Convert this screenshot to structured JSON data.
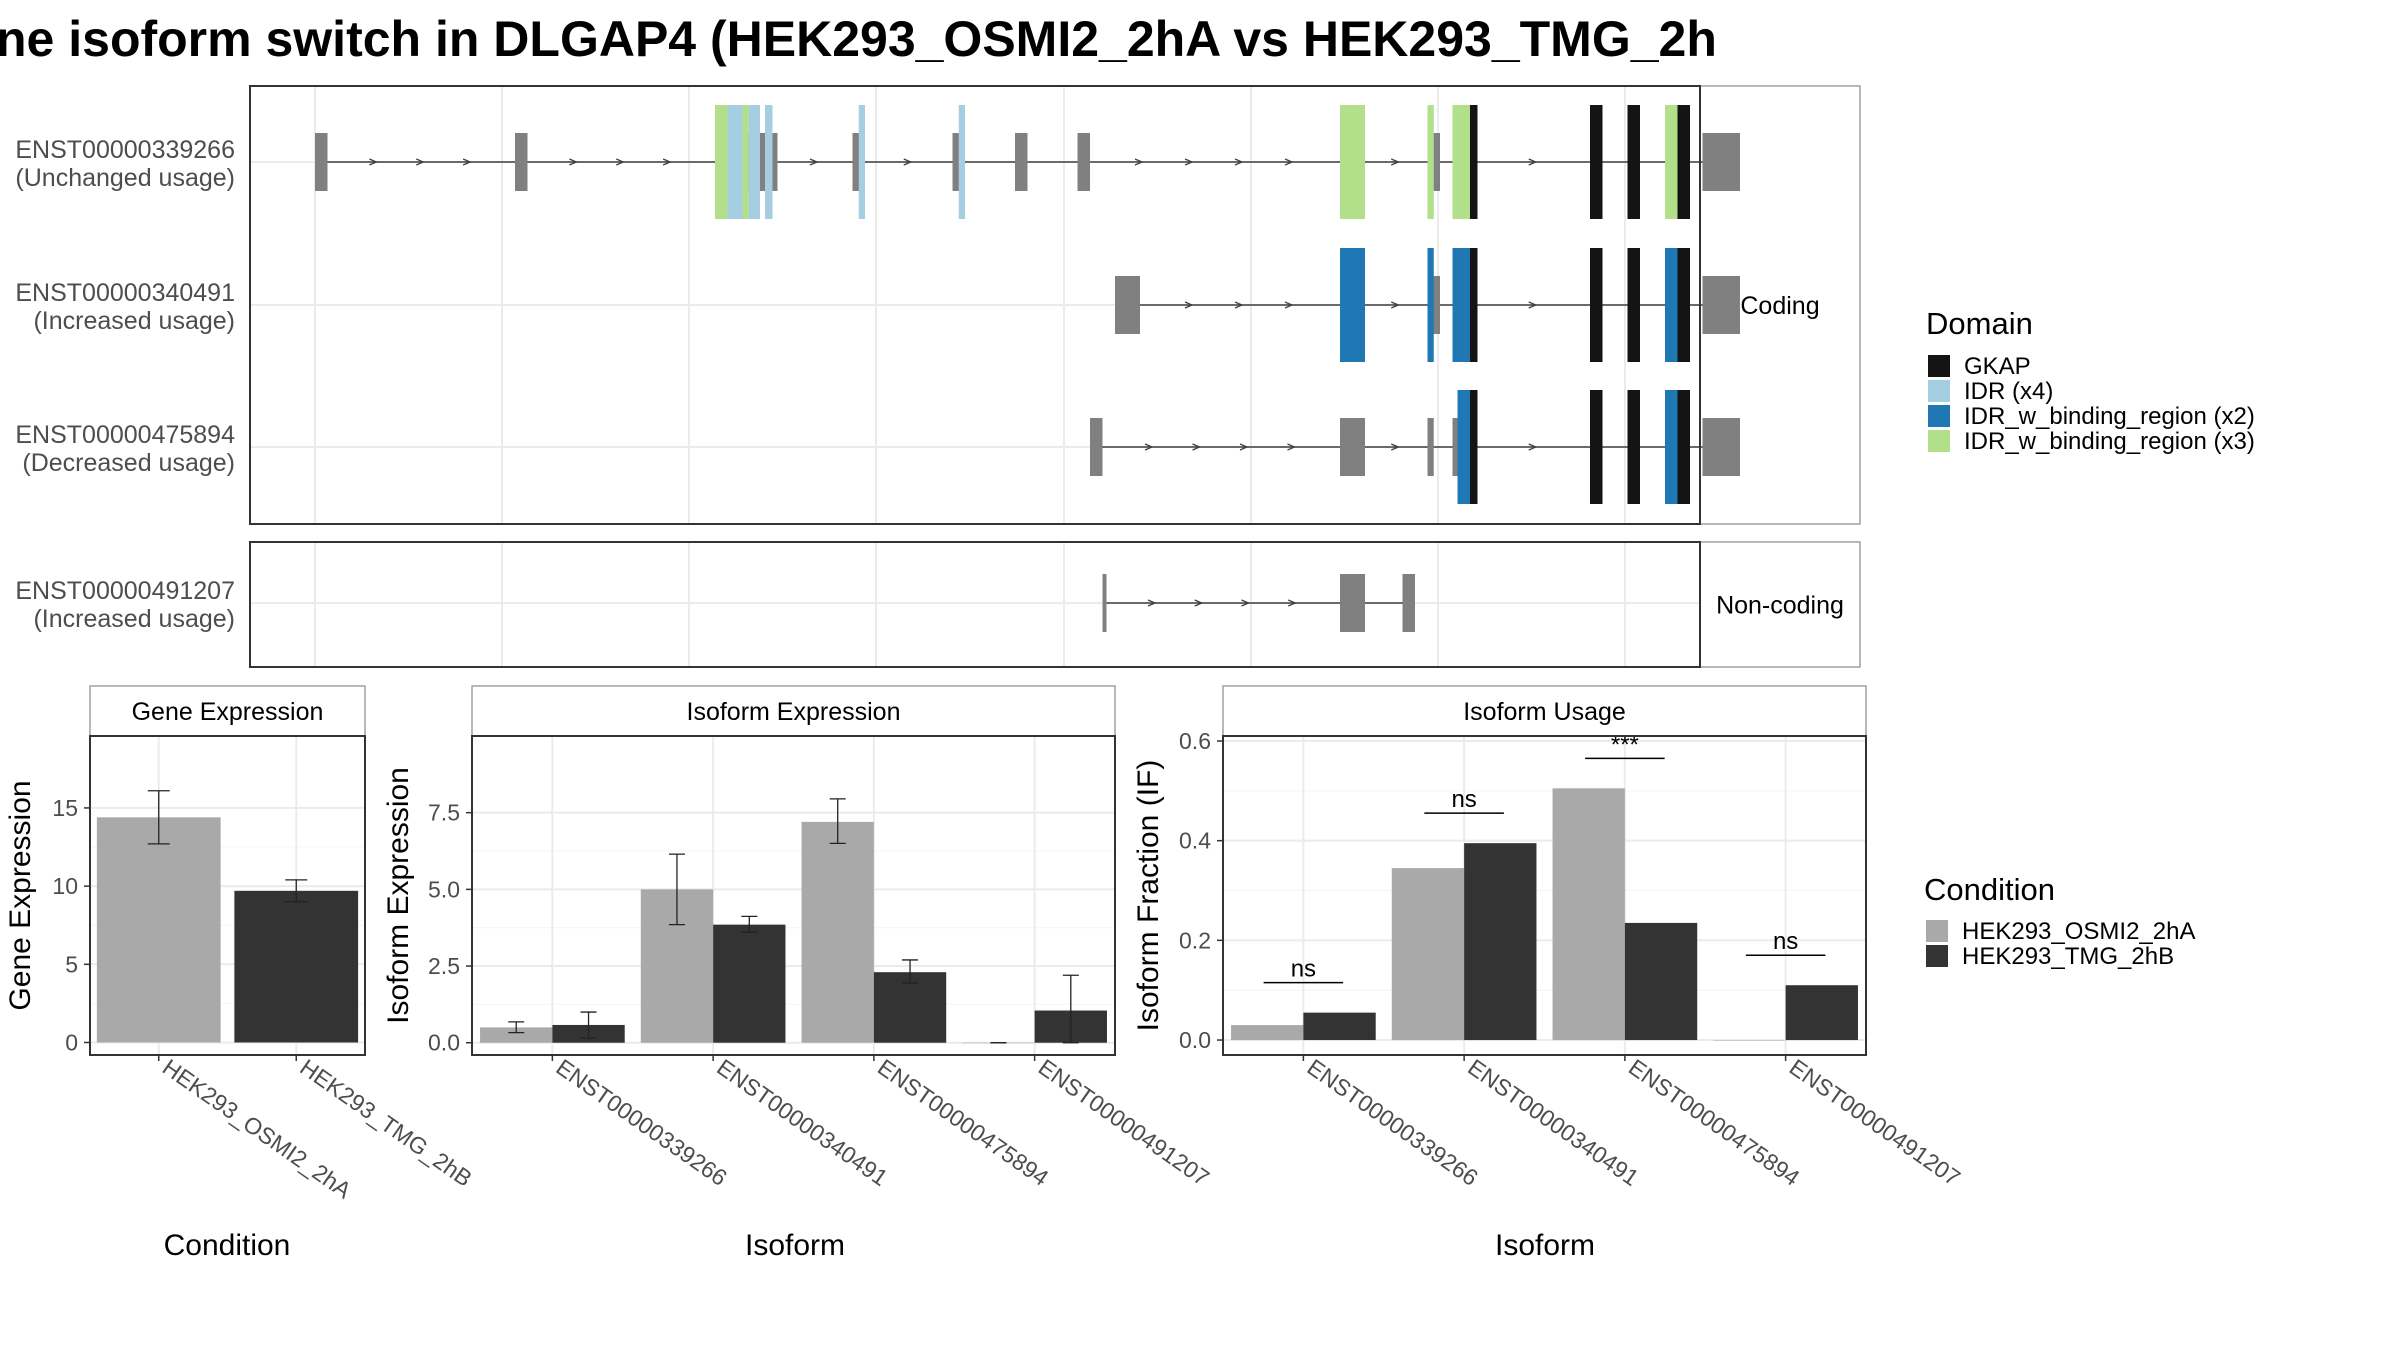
{
  "title": "ne isoform switch in DLGAP4 (HEK293_OSMI2_2hA vs HEK293_TMG_2h",
  "colors": {
    "GKAP": "#141414",
    "IDR (x4)": "#a6cee3",
    "IDR_w_binding_region (x2)": "#1f78b4",
    "IDR_w_binding_region (x3)": "#b2df8a",
    "exon": "#808080",
    "condA": "#a9a9a9",
    "condB": "#333333"
  },
  "domain_legend": {
    "title": "Domain",
    "items": [
      "GKAP",
      "IDR (x4)",
      "IDR_w_binding_region (x2)",
      "IDR_w_binding_region (x3)"
    ]
  },
  "condition_legend": {
    "title": "Condition",
    "items": [
      "HEK293_OSMI2_2hA",
      "HEK293_TMG_2hB"
    ]
  },
  "structure": {
    "facets": [
      {
        "label": "Coding",
        "rows": [
          {
            "id": "ENST00000339266",
            "usage": "(Unchanged usage)"
          },
          {
            "id": "ENST00000340491",
            "usage": "(Increased usage)"
          },
          {
            "id": "ENST00000475894",
            "usage": "(Decreased usage)"
          }
        ]
      },
      {
        "label": "Non-coding",
        "rows": [
          {
            "id": "ENST00000491207",
            "usage": "(Increased usage)"
          }
        ]
      }
    ],
    "transcripts": [
      {
        "id": "ENST00000339266",
        "exons": [
          [
            0,
            1
          ],
          [
            16,
            17
          ],
          [
            32,
            37
          ],
          [
            43,
            44
          ],
          [
            51,
            52
          ],
          [
            56,
            57
          ],
          [
            61,
            62
          ],
          [
            82,
            84
          ],
          [
            89,
            90
          ],
          [
            91,
            93
          ],
          [
            102,
            103
          ],
          [
            105,
            106
          ],
          [
            108,
            109
          ],
          [
            111,
            114
          ]
        ],
        "domains": [
          [
            32,
            33,
            "IDR_w_binding_region (x3)"
          ],
          [
            33,
            34.2,
            "IDR (x4)"
          ],
          [
            34.2,
            34.7,
            "IDR_w_binding_region (x3)"
          ],
          [
            34.7,
            35.6,
            "IDR (x4)"
          ],
          [
            36,
            36.6,
            "IDR (x4)"
          ],
          [
            43.5,
            44,
            "IDR (x4)"
          ],
          [
            51.5,
            52,
            "IDR (x4)"
          ],
          [
            82,
            84,
            "IDR_w_binding_region (x3)"
          ],
          [
            89,
            89.5,
            "IDR_w_binding_region (x3)"
          ],
          [
            91,
            92.4,
            "IDR_w_binding_region (x3)"
          ],
          [
            92.4,
            93,
            "GKAP"
          ],
          [
            102,
            103,
            "GKAP"
          ],
          [
            105,
            106,
            "GKAP"
          ],
          [
            108,
            109,
            "IDR_w_binding_region (x3)"
          ],
          [
            109,
            110,
            "GKAP"
          ]
        ]
      },
      {
        "id": "ENST00000340491",
        "exons": [
          [
            64,
            66
          ],
          [
            82,
            84
          ],
          [
            89,
            90
          ],
          [
            91,
            93
          ],
          [
            102,
            103
          ],
          [
            105,
            106
          ],
          [
            108,
            109
          ],
          [
            111,
            114
          ]
        ],
        "domains": [
          [
            82,
            84,
            "IDR_w_binding_region (x2)"
          ],
          [
            89,
            89.5,
            "IDR_w_binding_region (x2)"
          ],
          [
            91,
            92.4,
            "IDR_w_binding_region (x2)"
          ],
          [
            92.4,
            93,
            "GKAP"
          ],
          [
            102,
            103,
            "GKAP"
          ],
          [
            105,
            106,
            "GKAP"
          ],
          [
            108,
            109,
            "IDR_w_binding_region (x2)"
          ],
          [
            109,
            110,
            "GKAP"
          ]
        ]
      },
      {
        "id": "ENST00000475894",
        "exons": [
          [
            62,
            63
          ],
          [
            82,
            84
          ],
          [
            89,
            89.5
          ],
          [
            91,
            93
          ],
          [
            102,
            103
          ],
          [
            105,
            106
          ],
          [
            108,
            109
          ],
          [
            111,
            114
          ]
        ],
        "domains": [
          [
            91.4,
            92.4,
            "IDR_w_binding_region (x2)"
          ],
          [
            92.4,
            93,
            "GKAP"
          ],
          [
            102,
            103,
            "GKAP"
          ],
          [
            105,
            106,
            "GKAP"
          ],
          [
            108,
            109,
            "IDR_w_binding_region (x2)"
          ],
          [
            109,
            110,
            "GKAP"
          ]
        ]
      },
      {
        "id": "ENST00000491207",
        "exons": [
          [
            63,
            63.3
          ],
          [
            82,
            84
          ],
          [
            87,
            88
          ]
        ],
        "domains": []
      }
    ]
  },
  "chart_data": [
    {
      "type": "bar",
      "panel": "Gene Expression",
      "xlabel": "Condition",
      "ylabel": "Gene Expression",
      "categories": [
        "HEK293_OSMI2_2hA",
        "HEK293_TMG_2hB"
      ],
      "values": [
        14.4,
        9.7
      ],
      "error_bars": [
        [
          12.7,
          16.1
        ],
        [
          9.0,
          10.4
        ]
      ],
      "ylim": [
        -0.8,
        19.6
      ],
      "yticks": [
        0,
        5,
        10,
        15
      ]
    },
    {
      "type": "bar",
      "panel": "Isoform Expression",
      "xlabel": "Isoform",
      "ylabel": "Isoform Expression",
      "categories": [
        "ENST00000339266",
        "ENST00000340491",
        "ENST00000475894",
        "ENST00000491207"
      ],
      "series": [
        {
          "name": "HEK293_OSMI2_2hA",
          "values": [
            0.5,
            5.0,
            7.2,
            0.0
          ],
          "error_bars": [
            [
              0.33,
              0.68
            ],
            [
              3.85,
              6.15
            ],
            [
              6.5,
              7.95
            ],
            [
              0.0,
              0.0
            ]
          ]
        },
        {
          "name": "HEK293_TMG_2hB",
          "values": [
            0.58,
            3.85,
            2.3,
            1.05
          ],
          "error_bars": [
            [
              0.15,
              1.0
            ],
            [
              3.6,
              4.12
            ],
            [
              1.95,
              2.7
            ],
            [
              0.0,
              2.2
            ]
          ]
        }
      ],
      "ylim": [
        -0.4,
        10.0
      ],
      "yticks": [
        0.0,
        2.5,
        5.0,
        7.5
      ]
    },
    {
      "type": "bar",
      "panel": "Isoform Usage",
      "xlabel": "Isoform",
      "ylabel": "Isoform Fraction (IF)",
      "categories": [
        "ENST00000339266",
        "ENST00000340491",
        "ENST00000475894",
        "ENST00000491207"
      ],
      "series": [
        {
          "name": "HEK293_OSMI2_2hA",
          "values": [
            0.03,
            0.345,
            0.505,
            0.0
          ]
        },
        {
          "name": "HEK293_TMG_2hB",
          "values": [
            0.055,
            0.395,
            0.235,
            0.11
          ]
        }
      ],
      "significance": [
        "ns",
        "ns",
        "***",
        "ns"
      ],
      "ylim": [
        -0.03,
        0.61
      ],
      "yticks": [
        0.0,
        0.2,
        0.4,
        0.6
      ]
    }
  ]
}
